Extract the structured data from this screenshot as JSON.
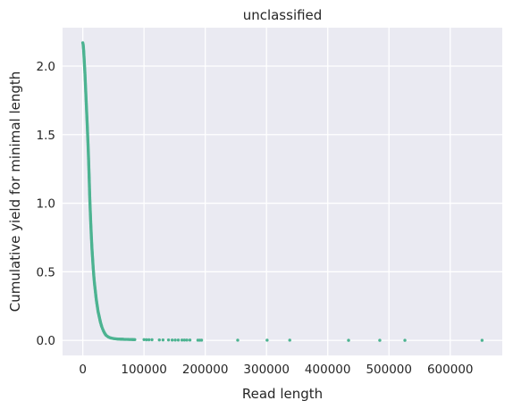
{
  "chart_data": {
    "type": "scatter",
    "title": "unclassified",
    "xlabel": "Read length",
    "ylabel": "Cumulative yield for minimal length",
    "xlim": [
      -33000,
      685000
    ],
    "ylim": [
      -0.11,
      2.28
    ],
    "xticks": [
      0,
      100000,
      200000,
      300000,
      400000,
      500000,
      600000
    ],
    "xtick_labels": [
      "0",
      "100000",
      "200000",
      "300000",
      "400000",
      "500000",
      "600000"
    ],
    "yticks": [
      0.0,
      0.5,
      1.0,
      1.5,
      2.0
    ],
    "ytick_labels": [
      "0.0",
      "0.5",
      "1.0",
      "1.5",
      "2.0"
    ],
    "grid": true,
    "background": "#eaeaf2",
    "grid_color": "#ffffff",
    "marker_color": "#4cb391",
    "series": [
      {
        "points": [
          [
            0,
            2.17
          ],
          [
            500,
            2.16
          ],
          [
            1000,
            2.14
          ],
          [
            1500,
            2.11
          ],
          [
            2000,
            2.07
          ],
          [
            2500,
            2.03
          ],
          [
            3000,
            1.99
          ],
          [
            3500,
            1.95
          ],
          [
            4000,
            1.9
          ],
          [
            4500,
            1.85
          ],
          [
            5000,
            1.8
          ],
          [
            5500,
            1.75
          ],
          [
            6000,
            1.7
          ],
          [
            6500,
            1.65
          ],
          [
            7000,
            1.6
          ],
          [
            7500,
            1.55
          ],
          [
            8000,
            1.49
          ],
          [
            8500,
            1.44
          ],
          [
            9000,
            1.38
          ],
          [
            9500,
            1.32
          ],
          [
            10000,
            1.25
          ],
          [
            10500,
            1.18
          ],
          [
            11000,
            1.1
          ],
          [
            11500,
            1.03
          ],
          [
            12000,
            0.97
          ],
          [
            13000,
            0.86
          ],
          [
            14000,
            0.76
          ],
          [
            15000,
            0.67
          ],
          [
            16000,
            0.6
          ],
          [
            17000,
            0.53
          ],
          [
            18000,
            0.47
          ],
          [
            19000,
            0.42
          ],
          [
            20000,
            0.38
          ],
          [
            21000,
            0.34
          ],
          [
            22000,
            0.3
          ],
          [
            23000,
            0.27
          ],
          [
            24000,
            0.24
          ],
          [
            25000,
            0.21
          ],
          [
            26000,
            0.19
          ],
          [
            27000,
            0.17
          ],
          [
            28000,
            0.15
          ],
          [
            29000,
            0.13
          ],
          [
            30000,
            0.115
          ],
          [
            31000,
            0.1
          ],
          [
            32000,
            0.088
          ],
          [
            33000,
            0.077
          ],
          [
            34000,
            0.067
          ],
          [
            35000,
            0.058
          ],
          [
            36000,
            0.05
          ],
          [
            37000,
            0.043
          ],
          [
            38000,
            0.037
          ],
          [
            40000,
            0.03
          ],
          [
            42000,
            0.024
          ],
          [
            44000,
            0.02
          ],
          [
            46000,
            0.017
          ],
          [
            48000,
            0.015
          ],
          [
            50000,
            0.013
          ],
          [
            52000,
            0.012
          ],
          [
            54000,
            0.011
          ],
          [
            56000,
            0.01
          ],
          [
            58000,
            0.009
          ],
          [
            60000,
            0.009
          ],
          [
            62000,
            0.008
          ],
          [
            65000,
            0.008
          ],
          [
            68000,
            0.007
          ],
          [
            72000,
            0.007
          ],
          [
            76000,
            0.006
          ],
          [
            80000,
            0.006
          ],
          [
            85000,
            0.005
          ],
          [
            100000,
            0.005
          ],
          [
            104000,
            0.004
          ],
          [
            108000,
            0.004
          ],
          [
            113000,
            0.004
          ],
          [
            125000,
            0.003
          ],
          [
            131000,
            0.003
          ],
          [
            140000,
            0.003
          ],
          [
            146000,
            0.002
          ],
          [
            151000,
            0.002
          ],
          [
            156000,
            0.002
          ],
          [
            162000,
            0.002
          ],
          [
            166000,
            0.002
          ],
          [
            170000,
            0.002
          ],
          [
            175000,
            0.002
          ],
          [
            188000,
            0.001
          ],
          [
            191000,
            0.001
          ],
          [
            194000,
            0.001
          ],
          [
            253000,
            0.001
          ],
          [
            301000,
            0.001
          ],
          [
            338000,
            0.001
          ],
          [
            434000,
            0.0
          ],
          [
            485000,
            0.0
          ],
          [
            526000,
            0.0
          ],
          [
            652000,
            0.0
          ]
        ]
      }
    ]
  }
}
